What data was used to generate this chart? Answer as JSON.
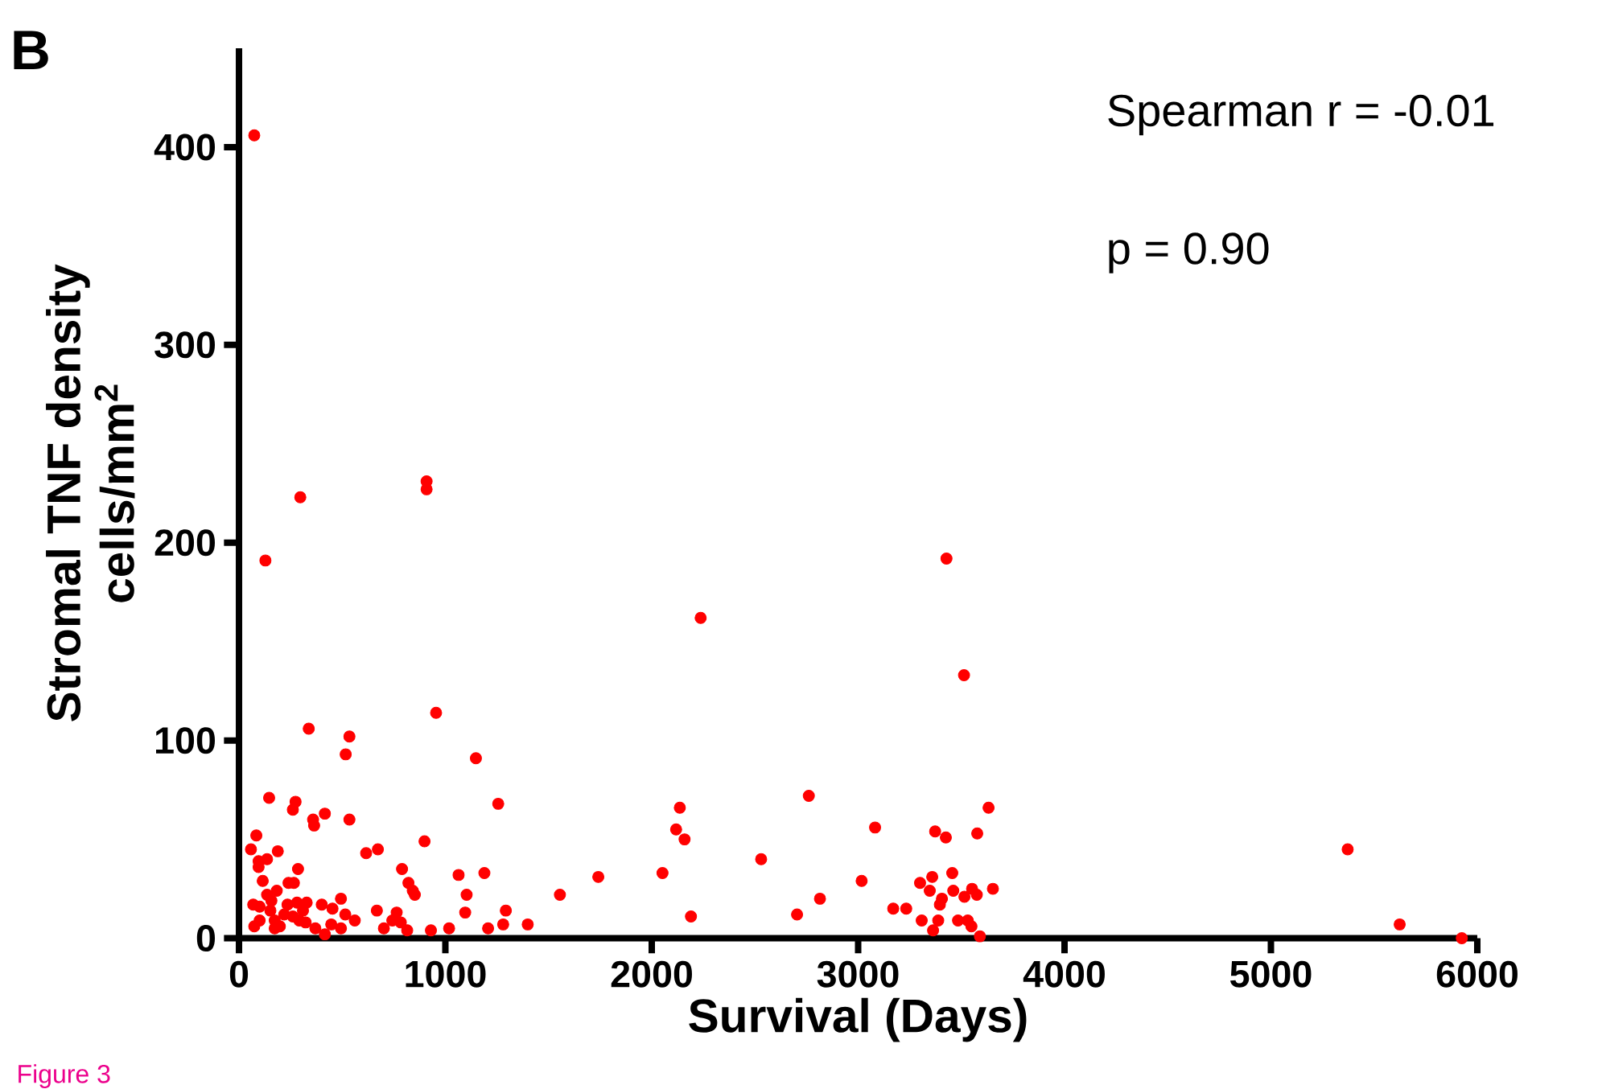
{
  "chart_data": {
    "type": "scatter",
    "xlabel": "Survival (Days)",
    "ylabel": "Stromal TNF density cells/mm$^{2}$",
    "annotations": [
      "B",
      "Spearman r = -0.01",
      "p = 0.90",
      "Figure 3"
    ],
    "xlim": [
      0,
      6000
    ],
    "xticks": [
      0,
      1000,
      2000,
      3000,
      4000,
      5000,
      6000
    ],
    "ylim": [
      0,
      450
    ],
    "yticks": [
      0,
      100,
      200,
      300,
      400
    ],
    "grid": false,
    "series": [
      {
        "color": "#ff0000",
        "x": [
          338,
          535,
          517,
          955,
          1148,
          1256,
          146,
          274,
          261,
          416,
          359,
          364,
          535,
          84,
          58,
          188,
          136,
          95,
          95,
          286,
          616,
          673,
          899,
          790,
          821,
          842,
          852,
          1064,
          1189,
          1103,
          1096,
          1293,
          1280,
          1207,
          1399,
          1555,
          1741,
          2052,
          2136,
          2118,
          2159,
          2190,
          115,
          136,
          183,
          240,
          266,
          69,
          100,
          157,
          152,
          235,
          281,
          328,
          310,
          219,
          261,
          292,
          323,
          100,
          74,
          173,
          173,
          198,
          370,
          401,
          453,
          494,
          515,
          447,
          494,
          561,
          416,
          668,
          764,
          743,
          784,
          702,
          815,
          930,
          1018,
          3513,
          2530,
          2761,
          2704,
          2815,
          3082,
          3017,
          3170,
          3233,
          3373,
          3425,
          3577,
          3632,
          3300,
          3359,
          3347,
          3456,
          3461,
          3515,
          3552,
          3575,
          3653,
          3406,
          3396,
          3308,
          3388,
          3484,
          3531,
          3549,
          3363,
          3590,
          5372,
          5624,
          5925,
          74,
          297,
          909,
          909,
          128,
          2237,
          3428
        ],
        "values": [
          106,
          102,
          93,
          114,
          91,
          68,
          71,
          69,
          65,
          63,
          60,
          57,
          60,
          52,
          45,
          44,
          40,
          39,
          36,
          35,
          43,
          45,
          49,
          35,
          28,
          24,
          22,
          32,
          33,
          22,
          13,
          14,
          7,
          5,
          7,
          22,
          31,
          33,
          66,
          55,
          50,
          11,
          29,
          22,
          24,
          28,
          28,
          17,
          16,
          19,
          14,
          17,
          18,
          18,
          14,
          12,
          11,
          9,
          8,
          9,
          6,
          9,
          5,
          6,
          5,
          17,
          15,
          20,
          12,
          7,
          5,
          9,
          2,
          14,
          13,
          9,
          8,
          5,
          4,
          4,
          5,
          133,
          40,
          72,
          12,
          20,
          56,
          29,
          15,
          15,
          54,
          51,
          53,
          66,
          28,
          31,
          24,
          33,
          24,
          21,
          25,
          22,
          25,
          20,
          17,
          9,
          9,
          9,
          9,
          6,
          4,
          1,
          45,
          7,
          0,
          406,
          223,
          231,
          227,
          191,
          162,
          192
        ]
      }
    ]
  }
}
